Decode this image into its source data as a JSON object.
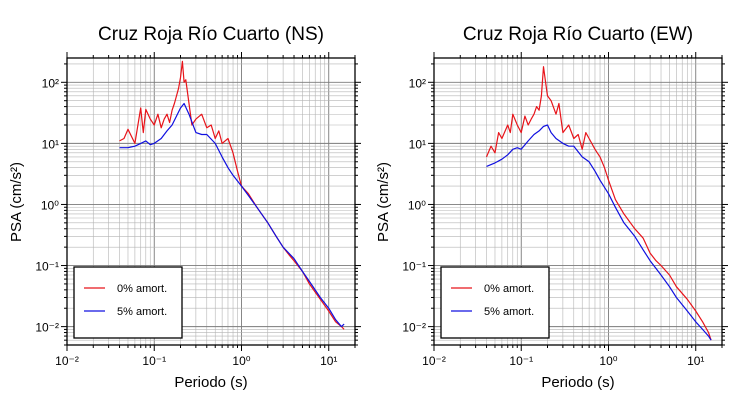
{
  "chart_data": [
    {
      "type": "line",
      "title": "Cruz Roja Río Cuarto (NS)",
      "xlabel": "Periodo (s)",
      "ylabel": "PSA (cm/s²)",
      "xscale": "log",
      "yscale": "log",
      "xlim": [
        0.01,
        20
      ],
      "ylim": [
        0.005,
        250
      ],
      "grid": true,
      "legend_position": "bottom-left",
      "xticks": [
        "10⁻²",
        "10⁻¹",
        "10⁰",
        "10¹"
      ],
      "yticks": [
        "10⁻²",
        "10⁻¹",
        "10⁰",
        "10¹",
        "10²"
      ],
      "series": [
        {
          "name": "0% amort.",
          "color": "#e8141a",
          "x": [
            0.04,
            0.045,
            0.05,
            0.06,
            0.07,
            0.075,
            0.08,
            0.09,
            0.1,
            0.11,
            0.12,
            0.13,
            0.14,
            0.15,
            0.16,
            0.17,
            0.18,
            0.19,
            0.2,
            0.21,
            0.22,
            0.23,
            0.25,
            0.27,
            0.3,
            0.35,
            0.4,
            0.45,
            0.5,
            0.55,
            0.6,
            0.7,
            0.8,
            0.9,
            1.0,
            1.2,
            1.5,
            2.0,
            2.5,
            3.0,
            3.5,
            4.0,
            5.0,
            6.0,
            8.0,
            10.0,
            12.0,
            14.0,
            15.0
          ],
          "y": [
            11,
            12,
            17,
            10,
            38,
            15,
            36,
            25,
            20,
            30,
            18,
            25,
            30,
            22,
            35,
            45,
            60,
            80,
            120,
            220,
            100,
            110,
            45,
            20,
            25,
            30,
            18,
            20,
            12,
            16,
            10,
            12,
            7,
            3.5,
            2.0,
            1.5,
            0.9,
            0.5,
            0.3,
            0.2,
            0.15,
            0.12,
            0.08,
            0.05,
            0.028,
            0.018,
            0.012,
            0.01,
            0.009
          ]
        },
        {
          "name": "5% amort.",
          "color": "#1010e0",
          "x": [
            0.04,
            0.05,
            0.06,
            0.07,
            0.08,
            0.09,
            0.1,
            0.12,
            0.14,
            0.16,
            0.18,
            0.2,
            0.22,
            0.25,
            0.3,
            0.35,
            0.4,
            0.5,
            0.6,
            0.7,
            0.8,
            1.0,
            1.2,
            1.5,
            2.0,
            2.5,
            3.0,
            4.0,
            5.0,
            6.0,
            8.0,
            10.0,
            12.0,
            14.0,
            15.0
          ],
          "y": [
            8.5,
            8.5,
            9,
            10,
            11,
            9.5,
            10,
            12,
            16,
            20,
            28,
            38,
            45,
            30,
            15,
            14,
            14,
            10,
            6,
            4.0,
            3.0,
            2.0,
            1.4,
            0.9,
            0.5,
            0.3,
            0.2,
            0.13,
            0.08,
            0.055,
            0.03,
            0.02,
            0.013,
            0.01,
            0.011
          ]
        }
      ]
    },
    {
      "type": "line",
      "title": "Cruz Roja Río Cuarto (EW)",
      "xlabel": "Periodo (s)",
      "ylabel": "PSA (cm/s²)",
      "xscale": "log",
      "yscale": "log",
      "xlim": [
        0.01,
        20
      ],
      "ylim": [
        0.005,
        250
      ],
      "grid": true,
      "legend_position": "bottom-left",
      "xticks": [
        "10⁻²",
        "10⁻¹",
        "10⁰",
        "10¹"
      ],
      "yticks": [
        "10⁻²",
        "10⁻¹",
        "10⁰",
        "10¹",
        "10²"
      ],
      "series": [
        {
          "name": "0% amort.",
          "color": "#e8141a",
          "x": [
            0.04,
            0.045,
            0.05,
            0.055,
            0.06,
            0.07,
            0.075,
            0.08,
            0.09,
            0.1,
            0.11,
            0.12,
            0.13,
            0.14,
            0.15,
            0.16,
            0.17,
            0.18,
            0.19,
            0.2,
            0.22,
            0.25,
            0.27,
            0.3,
            0.35,
            0.4,
            0.45,
            0.5,
            0.55,
            0.6,
            0.7,
            0.8,
            0.9,
            1.0,
            1.2,
            1.5,
            2.0,
            2.5,
            3.0,
            3.5,
            4.0,
            5.0,
            6.0,
            8.0,
            10.0,
            12.0,
            14.0,
            15.0
          ],
          "y": [
            6,
            9,
            7,
            15,
            12,
            20,
            15,
            30,
            20,
            15,
            28,
            20,
            25,
            30,
            40,
            35,
            60,
            180,
            100,
            60,
            50,
            30,
            45,
            15,
            20,
            12,
            14,
            8,
            15,
            12,
            8,
            6,
            4,
            2.5,
            1.2,
            0.7,
            0.4,
            0.28,
            0.16,
            0.12,
            0.1,
            0.07,
            0.045,
            0.028,
            0.018,
            0.012,
            0.008,
            0.006
          ]
        },
        {
          "name": "5% amort.",
          "color": "#1010e0",
          "x": [
            0.04,
            0.05,
            0.06,
            0.07,
            0.08,
            0.09,
            0.1,
            0.12,
            0.14,
            0.16,
            0.18,
            0.2,
            0.22,
            0.25,
            0.3,
            0.35,
            0.4,
            0.5,
            0.6,
            0.7,
            0.8,
            1.0,
            1.2,
            1.5,
            2.0,
            2.5,
            3.0,
            4.0,
            5.0,
            6.0,
            8.0,
            10.0,
            12.0,
            14.0,
            15.0
          ],
          "y": [
            4.2,
            4.8,
            5.5,
            6.5,
            8,
            8.5,
            8,
            11,
            14,
            16,
            19,
            20,
            15,
            12,
            10,
            9,
            9,
            6,
            5,
            3.5,
            2.5,
            1.5,
            0.9,
            0.5,
            0.3,
            0.18,
            0.12,
            0.07,
            0.045,
            0.03,
            0.018,
            0.012,
            0.009,
            0.007,
            0.006
          ]
        }
      ]
    }
  ]
}
